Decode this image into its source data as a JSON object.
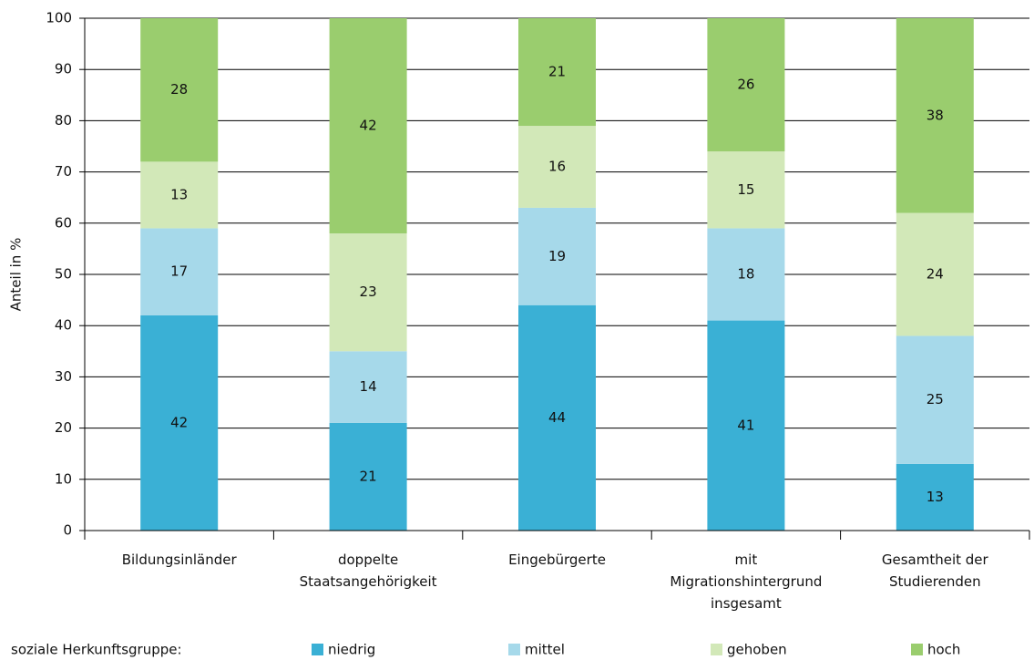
{
  "chart_data": {
    "type": "stacked_bar",
    "y_label": "Anteil in %",
    "categories": [
      "Bildungsinländer",
      "doppelte\nStaatsangehörigkeit",
      "Eingebürgerte",
      "mit\nMigrationshintergrund\ninsgesamt",
      "Gesamtheit der\nStudierenden"
    ],
    "series": [
      {
        "name": "niedrig",
        "color": "#3ab0d5",
        "values": [
          42,
          21,
          44,
          41,
          13
        ]
      },
      {
        "name": "mittel",
        "color": "#a6d9ea",
        "values": [
          17,
          14,
          19,
          18,
          25
        ]
      },
      {
        "name": "gehoben",
        "color": "#d2e8b8",
        "values": [
          13,
          23,
          16,
          15,
          24
        ]
      },
      {
        "name": "hoch",
        "color": "#9acd6e",
        "values": [
          28,
          42,
          21,
          26,
          38
        ]
      }
    ],
    "legend_title": "soziale Herkunftsgruppe:",
    "ylim": [
      0,
      100
    ],
    "yticks": [
      0,
      10,
      20,
      30,
      40,
      50,
      60,
      70,
      80,
      90,
      100
    ],
    "grid": true,
    "legend": "bottom"
  }
}
